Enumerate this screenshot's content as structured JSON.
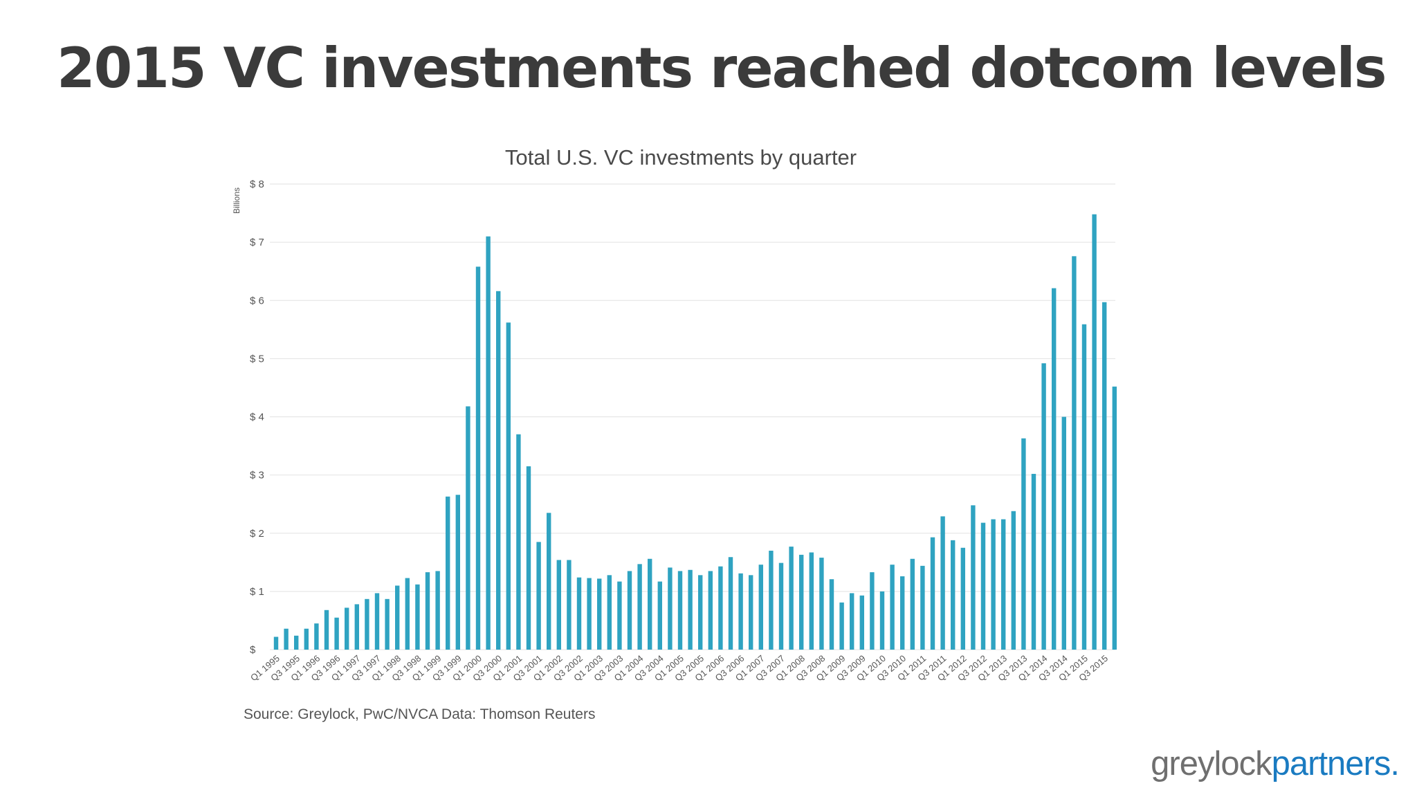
{
  "slide": {
    "title": "2015 VC investments reached dotcom levels",
    "source": "Source: Greylock, PwC/NVCA Data: Thomson Reuters",
    "logo": {
      "part1": "greylock",
      "part2": "partners."
    }
  },
  "colors": {
    "bar": "#2fa3c1",
    "grid": "#e2e2e2",
    "text": "#4a4a4a",
    "brand_blue": "#1a7bc1"
  },
  "chart_data": {
    "type": "bar",
    "title": "Total U.S. VC investments by quarter",
    "ylabel": "Billions",
    "ylim": [
      0,
      8
    ],
    "y_ticks": [
      "$",
      "$ 1",
      "$ 2",
      "$ 3",
      "$ 4",
      "$ 5",
      "$ 6",
      "$ 7",
      "$ 8"
    ],
    "grid": true,
    "categories": [
      "Q1 1995",
      "Q2 1995",
      "Q3 1995",
      "Q4 1995",
      "Q1 1996",
      "Q2 1996",
      "Q3 1996",
      "Q4 1996",
      "Q1 1997",
      "Q2 1997",
      "Q3 1997",
      "Q4 1997",
      "Q1 1998",
      "Q2 1998",
      "Q3 1998",
      "Q4 1998",
      "Q1 1999",
      "Q2 1999",
      "Q3 1999",
      "Q4 1999",
      "Q1 2000",
      "Q2 2000",
      "Q3 2000",
      "Q4 2000",
      "Q1 2001",
      "Q2 2001",
      "Q3 2001",
      "Q4 2001",
      "Q1 2002",
      "Q2 2002",
      "Q3 2002",
      "Q4 2002",
      "Q1 2003",
      "Q2 2003",
      "Q3 2003",
      "Q4 2003",
      "Q1 2004",
      "Q2 2004",
      "Q3 2004",
      "Q4 2004",
      "Q1 2005",
      "Q2 2005",
      "Q3 2005",
      "Q4 2005",
      "Q1 2006",
      "Q2 2006",
      "Q3 2006",
      "Q4 2006",
      "Q1 2007",
      "Q2 2007",
      "Q3 2007",
      "Q4 2007",
      "Q1 2008",
      "Q2 2008",
      "Q3 2008",
      "Q4 2008",
      "Q1 2009",
      "Q2 2009",
      "Q3 2009",
      "Q4 2009",
      "Q1 2010",
      "Q2 2010",
      "Q3 2010",
      "Q4 2010",
      "Q1 2011",
      "Q2 2011",
      "Q3 2011",
      "Q4 2011",
      "Q1 2012",
      "Q2 2012",
      "Q3 2012",
      "Q4 2012",
      "Q1 2013",
      "Q2 2013",
      "Q3 2013",
      "Q4 2013",
      "Q1 2014",
      "Q2 2014",
      "Q3 2014",
      "Q4 2014",
      "Q1 2015",
      "Q2 2015",
      "Q3 2015",
      "Q4 2015"
    ],
    "x_tick_labels": [
      "Q1 1995",
      "Q3 1995",
      "Q1 1996",
      "Q3 1996",
      "Q1 1997",
      "Q3 1997",
      "Q1 1998",
      "Q3 1998",
      "Q1 1999",
      "Q3 1999",
      "Q1 2000",
      "Q3 2000",
      "Q1 2001",
      "Q3 2001",
      "Q1 2002",
      "Q3 2002",
      "Q1 2003",
      "Q3 2003",
      "Q1 2004",
      "Q3 2004",
      "Q1 2005",
      "Q3 2005",
      "Q1 2006",
      "Q3 2006",
      "Q1 2007",
      "Q3 2007",
      "Q1 2008",
      "Q3 2008",
      "Q1 2009",
      "Q3 2009",
      "Q1 2010",
      "Q3 2010",
      "Q1 2011",
      "Q3 2011",
      "Q1 2012",
      "Q3 2012",
      "Q1 2013",
      "Q3 2013",
      "Q1 2014",
      "Q3 2014",
      "Q1 2015",
      "Q3 2015"
    ],
    "values": [
      0.22,
      0.36,
      0.24,
      0.36,
      0.45,
      0.68,
      0.55,
      0.72,
      0.78,
      0.87,
      0.97,
      0.87,
      1.1,
      1.23,
      1.12,
      1.33,
      1.35,
      2.63,
      2.66,
      4.18,
      6.58,
      7.1,
      6.16,
      5.62,
      3.7,
      3.15,
      1.85,
      2.35,
      1.54,
      1.54,
      1.24,
      1.23,
      1.22,
      1.28,
      1.17,
      1.35,
      1.47,
      1.56,
      1.17,
      1.41,
      1.35,
      1.37,
      1.28,
      1.35,
      1.43,
      1.59,
      1.31,
      1.28,
      1.46,
      1.7,
      1.49,
      1.77,
      1.63,
      1.67,
      1.58,
      1.21,
      0.81,
      0.97,
      0.93,
      1.33,
      1.0,
      1.46,
      1.26,
      1.56,
      1.44,
      1.93,
      2.29,
      1.88,
      1.75,
      2.48,
      2.18,
      2.24,
      2.24,
      2.38,
      3.63,
      3.02,
      4.92,
      6.21,
      4.0,
      6.76,
      5.59,
      7.48,
      5.97,
      4.52
    ]
  }
}
